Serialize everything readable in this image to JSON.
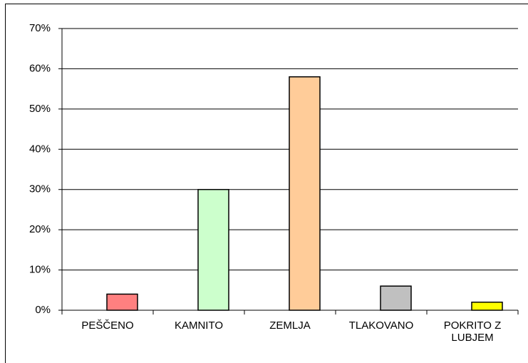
{
  "chart_data": {
    "type": "bar",
    "categories": [
      "PEŠČENO",
      "KAMNITO",
      "ZEMLJA",
      "TLAKOVANO",
      "POKRITO Z LUBJEM"
    ],
    "values": [
      4,
      30,
      58,
      6,
      2
    ],
    "colors": [
      "#ff8080",
      "#ccffcc",
      "#ffcc99",
      "#c0c0c0",
      "#ffff00"
    ],
    "ylim": [
      0,
      70
    ],
    "yticks": [
      {
        "value": 0,
        "label": "0%"
      },
      {
        "value": 10,
        "label": "10%"
      },
      {
        "value": 20,
        "label": "20%"
      },
      {
        "value": 30,
        "label": "30%"
      },
      {
        "value": 40,
        "label": "40%"
      },
      {
        "value": 50,
        "label": "50%"
      },
      {
        "value": 60,
        "label": "60%"
      },
      {
        "value": 70,
        "label": "70%"
      }
    ],
    "grid": true
  }
}
